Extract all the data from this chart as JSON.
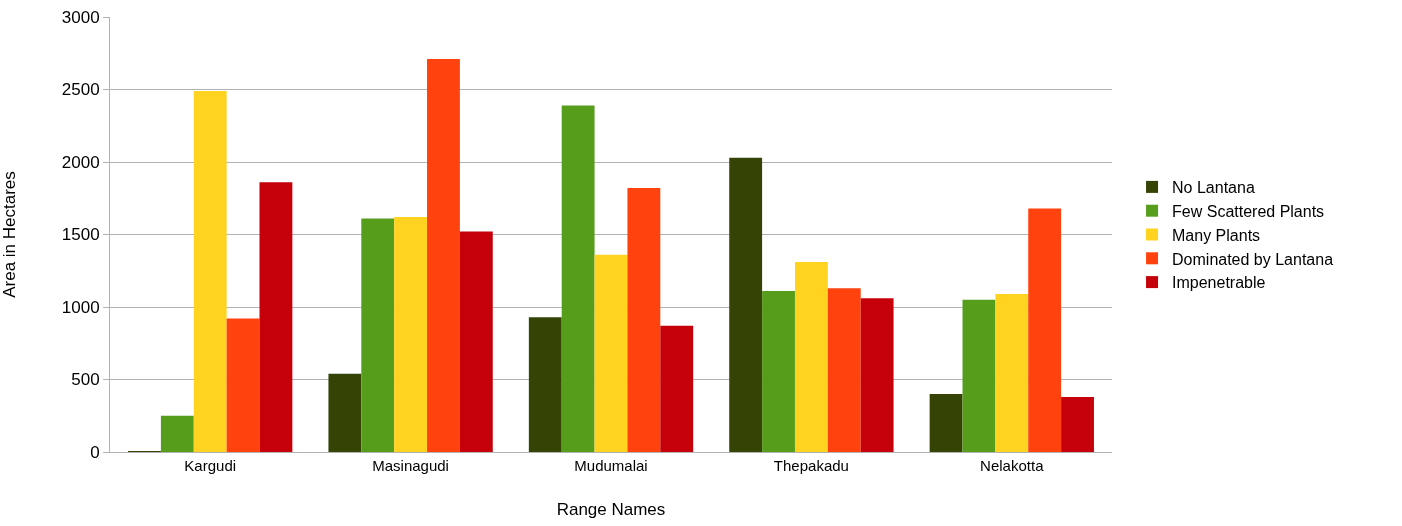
{
  "chart_data": {
    "type": "bar",
    "xlabel": "Range Names",
    "ylabel": "Area in Hectares",
    "categories": [
      "Kargudi",
      "Masinagudi",
      "Mudumalai",
      "Thepakadu",
      "Nelakotta"
    ],
    "series": [
      {
        "name": "No Lantana",
        "color": "#354405",
        "values": [
          5,
          540,
          930,
          2030,
          400
        ]
      },
      {
        "name": "Few Scattered Plants",
        "color": "#579d1c",
        "values": [
          250,
          1610,
          2390,
          1110,
          1050
        ]
      },
      {
        "name": "Many Plants",
        "color": "#ffd320",
        "values": [
          2490,
          1620,
          1360,
          1310,
          1090
        ]
      },
      {
        "name": "Dominated by Lantana",
        "color": "#ff420e",
        "values": [
          920,
          2710,
          1820,
          1130,
          1680
        ]
      },
      {
        "name": "Impenetrable",
        "color": "#c5000b",
        "values": [
          1860,
          1520,
          870,
          1060,
          380
        ]
      }
    ],
    "ylim": [
      0,
      3000
    ],
    "yticks": [
      0,
      500,
      1000,
      1500,
      2000,
      2500,
      3000
    ],
    "grid": "y",
    "legend": "right"
  }
}
